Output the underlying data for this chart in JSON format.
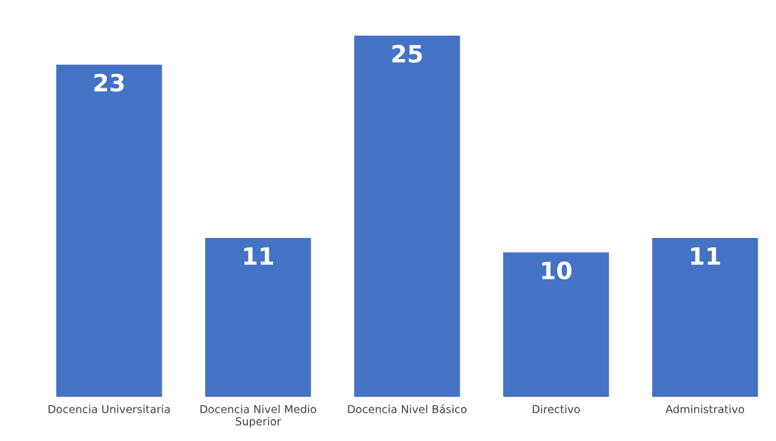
{
  "chart_data": {
    "type": "bar",
    "categories": [
      "Docencia Universitaria",
      "Docencia Nivel Medio\nSuperior",
      "Docencia Nivel Básico",
      "Directivo",
      "Administrativo"
    ],
    "values": [
      23,
      11,
      25,
      10,
      11
    ],
    "color": "#4472c4",
    "data_labels": true,
    "grid": false,
    "legend": false
  }
}
